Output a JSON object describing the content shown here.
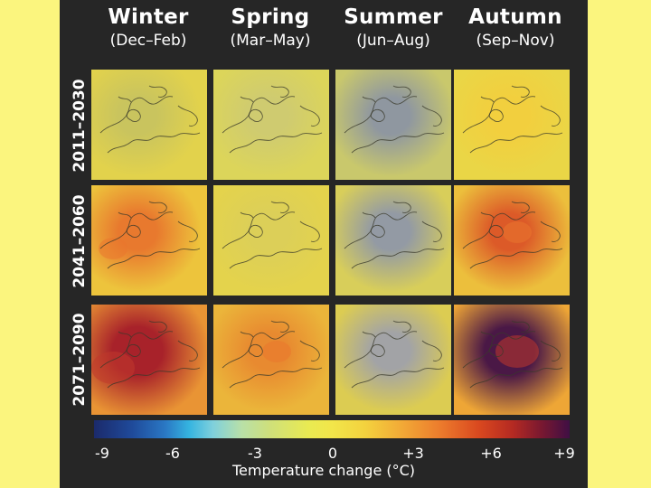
{
  "seasons": [
    {
      "name": "Winter",
      "months": "(Dec–Feb)"
    },
    {
      "name": "Spring",
      "months": "(Mar–May)"
    },
    {
      "name": "Summer",
      "months": "(Jun–Aug)"
    },
    {
      "name": "Autumn",
      "months": "(Sep–Nov)"
    }
  ],
  "periods": [
    "2011–2030",
    "2041–2060",
    "2071–2090"
  ],
  "colorbar": {
    "title": "Temperature change (°C)",
    "ticks": [
      "-9",
      "-6",
      "-3",
      "0",
      "+3",
      "+6",
      "+9"
    ],
    "range": [
      -9,
      9
    ]
  },
  "panels": [
    [
      {
        "base": "#e2d24c",
        "center": "#c9c45e",
        "hot": 0
      },
      {
        "base": "#dcd55a",
        "center": "#cfcb70",
        "hot": 0
      },
      {
        "base": "#c9c86c",
        "center": "#8f97a0",
        "hot": 0
      },
      {
        "base": "#ead646",
        "center": "#f2cf3e",
        "hot": 0
      }
    ],
    [
      {
        "base": "#edc43c",
        "center": "#e8792e",
        "hot": 1
      },
      {
        "base": "#e4d34c",
        "center": "#dccf58",
        "hot": 0
      },
      {
        "base": "#d8ce5a",
        "center": "#939aa4",
        "hot": 0
      },
      {
        "base": "#ecbf3c",
        "center": "#dc5a28",
        "hot": 1
      }
    ],
    [
      {
        "base": "#e99434",
        "center": "#a8222a",
        "hot": 2
      },
      {
        "base": "#ebb53a",
        "center": "#e88a30",
        "hot": 1
      },
      {
        "base": "#dccc52",
        "center": "#a2a3a6",
        "hot": 0
      },
      {
        "base": "#eea636",
        "center": "#4a1846",
        "hot": 2
      }
    ]
  ]
}
